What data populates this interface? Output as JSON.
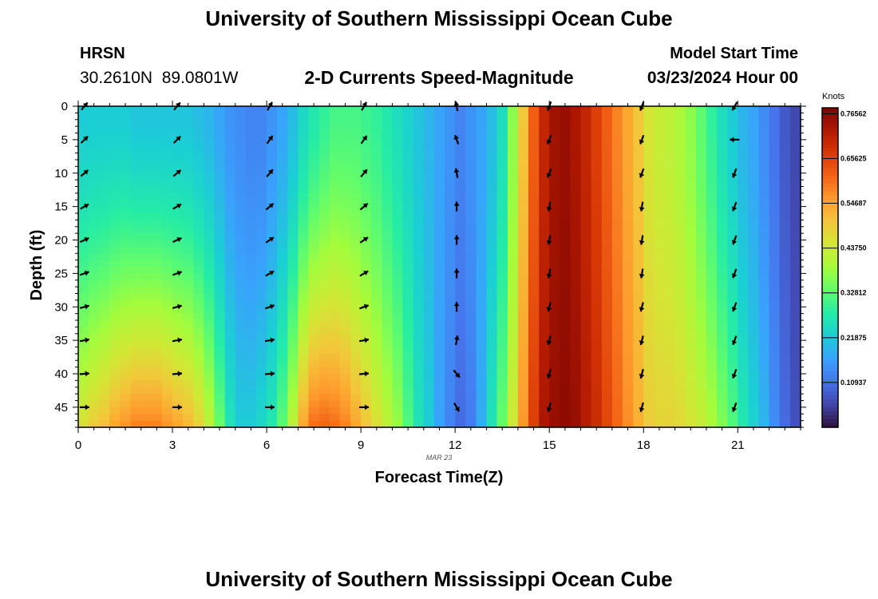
{
  "header": {
    "title": "University of Southern Mississippi Ocean Cube",
    "station": "HRSN",
    "coords": "30.2610N  89.0801W",
    "chart_title": "2-D Currents Speed-Magnitude",
    "model_start_label": "Model Start Time",
    "model_start_time": "03/23/2024 Hour 00"
  },
  "footer": {
    "title": "University of Southern Mississippi Ocean Cube"
  },
  "chart_data": {
    "type": "heatmap",
    "title": "2-D Currents Speed-Magnitude",
    "xlabel": "Forecast Time(Z)",
    "ylabel": "Depth (ft)",
    "date_label": "MAR 23",
    "x_ticks": [
      0,
      3,
      6,
      9,
      12,
      15,
      18,
      21
    ],
    "y_ticks": [
      0,
      5,
      10,
      15,
      20,
      25,
      30,
      35,
      40,
      45
    ],
    "xlim": [
      0,
      23
    ],
    "ylim": [
      0,
      48
    ],
    "colorbar": {
      "label": "Knots",
      "min": 0.0,
      "max": 0.78,
      "ticks": [
        "0.10937",
        "0.21875",
        "0.32812",
        "0.43750",
        "0.54687",
        "0.65625",
        "0.76562"
      ]
    },
    "colormap_stops": [
      "#30123b",
      "#4145ab",
      "#4675ed",
      "#39a2fc",
      "#1bcfd4",
      "#24eca6",
      "#61fc6c",
      "#a4fc3b",
      "#d1e834",
      "#f3c63a",
      "#fe9b2d",
      "#f36315",
      "#d93806",
      "#b11901",
      "#7a0403"
    ],
    "hours": [
      0,
      0.33,
      0.67,
      1,
      1.33,
      1.67,
      2,
      2.33,
      2.67,
      3,
      3.33,
      3.67,
      4,
      4.33,
      4.67,
      5,
      5.33,
      5.67,
      6,
      6.33,
      6.67,
      7,
      7.33,
      7.67,
      8,
      8.33,
      8.67,
      9,
      9.33,
      9.67,
      10,
      10.33,
      10.67,
      11,
      11.33,
      11.67,
      12,
      12.33,
      12.67,
      13,
      13.33,
      13.67,
      14,
      14.33,
      14.67,
      15,
      15.33,
      15.67,
      16,
      16.33,
      16.67,
      17,
      17.33,
      17.67,
      18,
      18.33,
      18.67,
      19,
      19.33,
      19.67,
      20,
      20.33,
      20.67,
      21,
      21.33,
      21.67,
      22,
      22.33,
      22.67
    ],
    "surface_speed": [
      0.22,
      0.22,
      0.22,
      0.22,
      0.22,
      0.21,
      0.21,
      0.21,
      0.21,
      0.21,
      0.21,
      0.2,
      0.19,
      0.17,
      0.15,
      0.14,
      0.13,
      0.13,
      0.15,
      0.17,
      0.2,
      0.24,
      0.27,
      0.29,
      0.31,
      0.31,
      0.31,
      0.3,
      0.29,
      0.27,
      0.25,
      0.23,
      0.21,
      0.19,
      0.17,
      0.15,
      0.13,
      0.15,
      0.17,
      0.2,
      0.25,
      0.37,
      0.5,
      0.62,
      0.7,
      0.74,
      0.75,
      0.73,
      0.7,
      0.66,
      0.62,
      0.58,
      0.54,
      0.5,
      0.45,
      0.43,
      0.42,
      0.4,
      0.37,
      0.33,
      0.29,
      0.25,
      0.22,
      0.19,
      0.17,
      0.14,
      0.11,
      0.08,
      0.06
    ],
    "bottom_speed": [
      0.46,
      0.49,
      0.51,
      0.54,
      0.56,
      0.58,
      0.58,
      0.58,
      0.56,
      0.54,
      0.52,
      0.48,
      0.42,
      0.34,
      0.26,
      0.22,
      0.22,
      0.24,
      0.27,
      0.33,
      0.42,
      0.54,
      0.6,
      0.61,
      0.6,
      0.58,
      0.54,
      0.5,
      0.46,
      0.42,
      0.38,
      0.32,
      0.26,
      0.22,
      0.17,
      0.13,
      0.1,
      0.12,
      0.18,
      0.26,
      0.34,
      0.44,
      0.56,
      0.66,
      0.73,
      0.75,
      0.76,
      0.75,
      0.72,
      0.69,
      0.65,
      0.61,
      0.57,
      0.53,
      0.49,
      0.48,
      0.48,
      0.47,
      0.45,
      0.43,
      0.4,
      0.36,
      0.32,
      0.27,
      0.23,
      0.19,
      0.14,
      0.1,
      0.07
    ],
    "vector_hours": [
      0.2,
      3.15,
      6.1,
      9.1,
      12.05,
      15.0,
      17.95,
      20.9
    ],
    "vector_depths": [
      0,
      5,
      10,
      15,
      20,
      25,
      30,
      35,
      40,
      45
    ],
    "vector_directions_deg": [
      [
        40,
        45,
        50,
        60,
        65,
        70,
        75,
        80,
        85,
        90
      ],
      [
        40,
        45,
        50,
        60,
        65,
        70,
        75,
        80,
        85,
        90
      ],
      [
        30,
        35,
        40,
        50,
        55,
        60,
        70,
        80,
        85,
        90
      ],
      [
        30,
        35,
        40,
        50,
        55,
        60,
        70,
        80,
        85,
        90
      ],
      [
        -10,
        -20,
        -10,
        0,
        0,
        0,
        0,
        10,
        140,
        150
      ],
      [
        200,
        200,
        200,
        190,
        190,
        190,
        195,
        195,
        195,
        195
      ],
      [
        200,
        200,
        200,
        190,
        190,
        190,
        195,
        195,
        195,
        195
      ],
      [
        210,
        270,
        200,
        200,
        200,
        200,
        200,
        200,
        200,
        200
      ]
    ]
  }
}
